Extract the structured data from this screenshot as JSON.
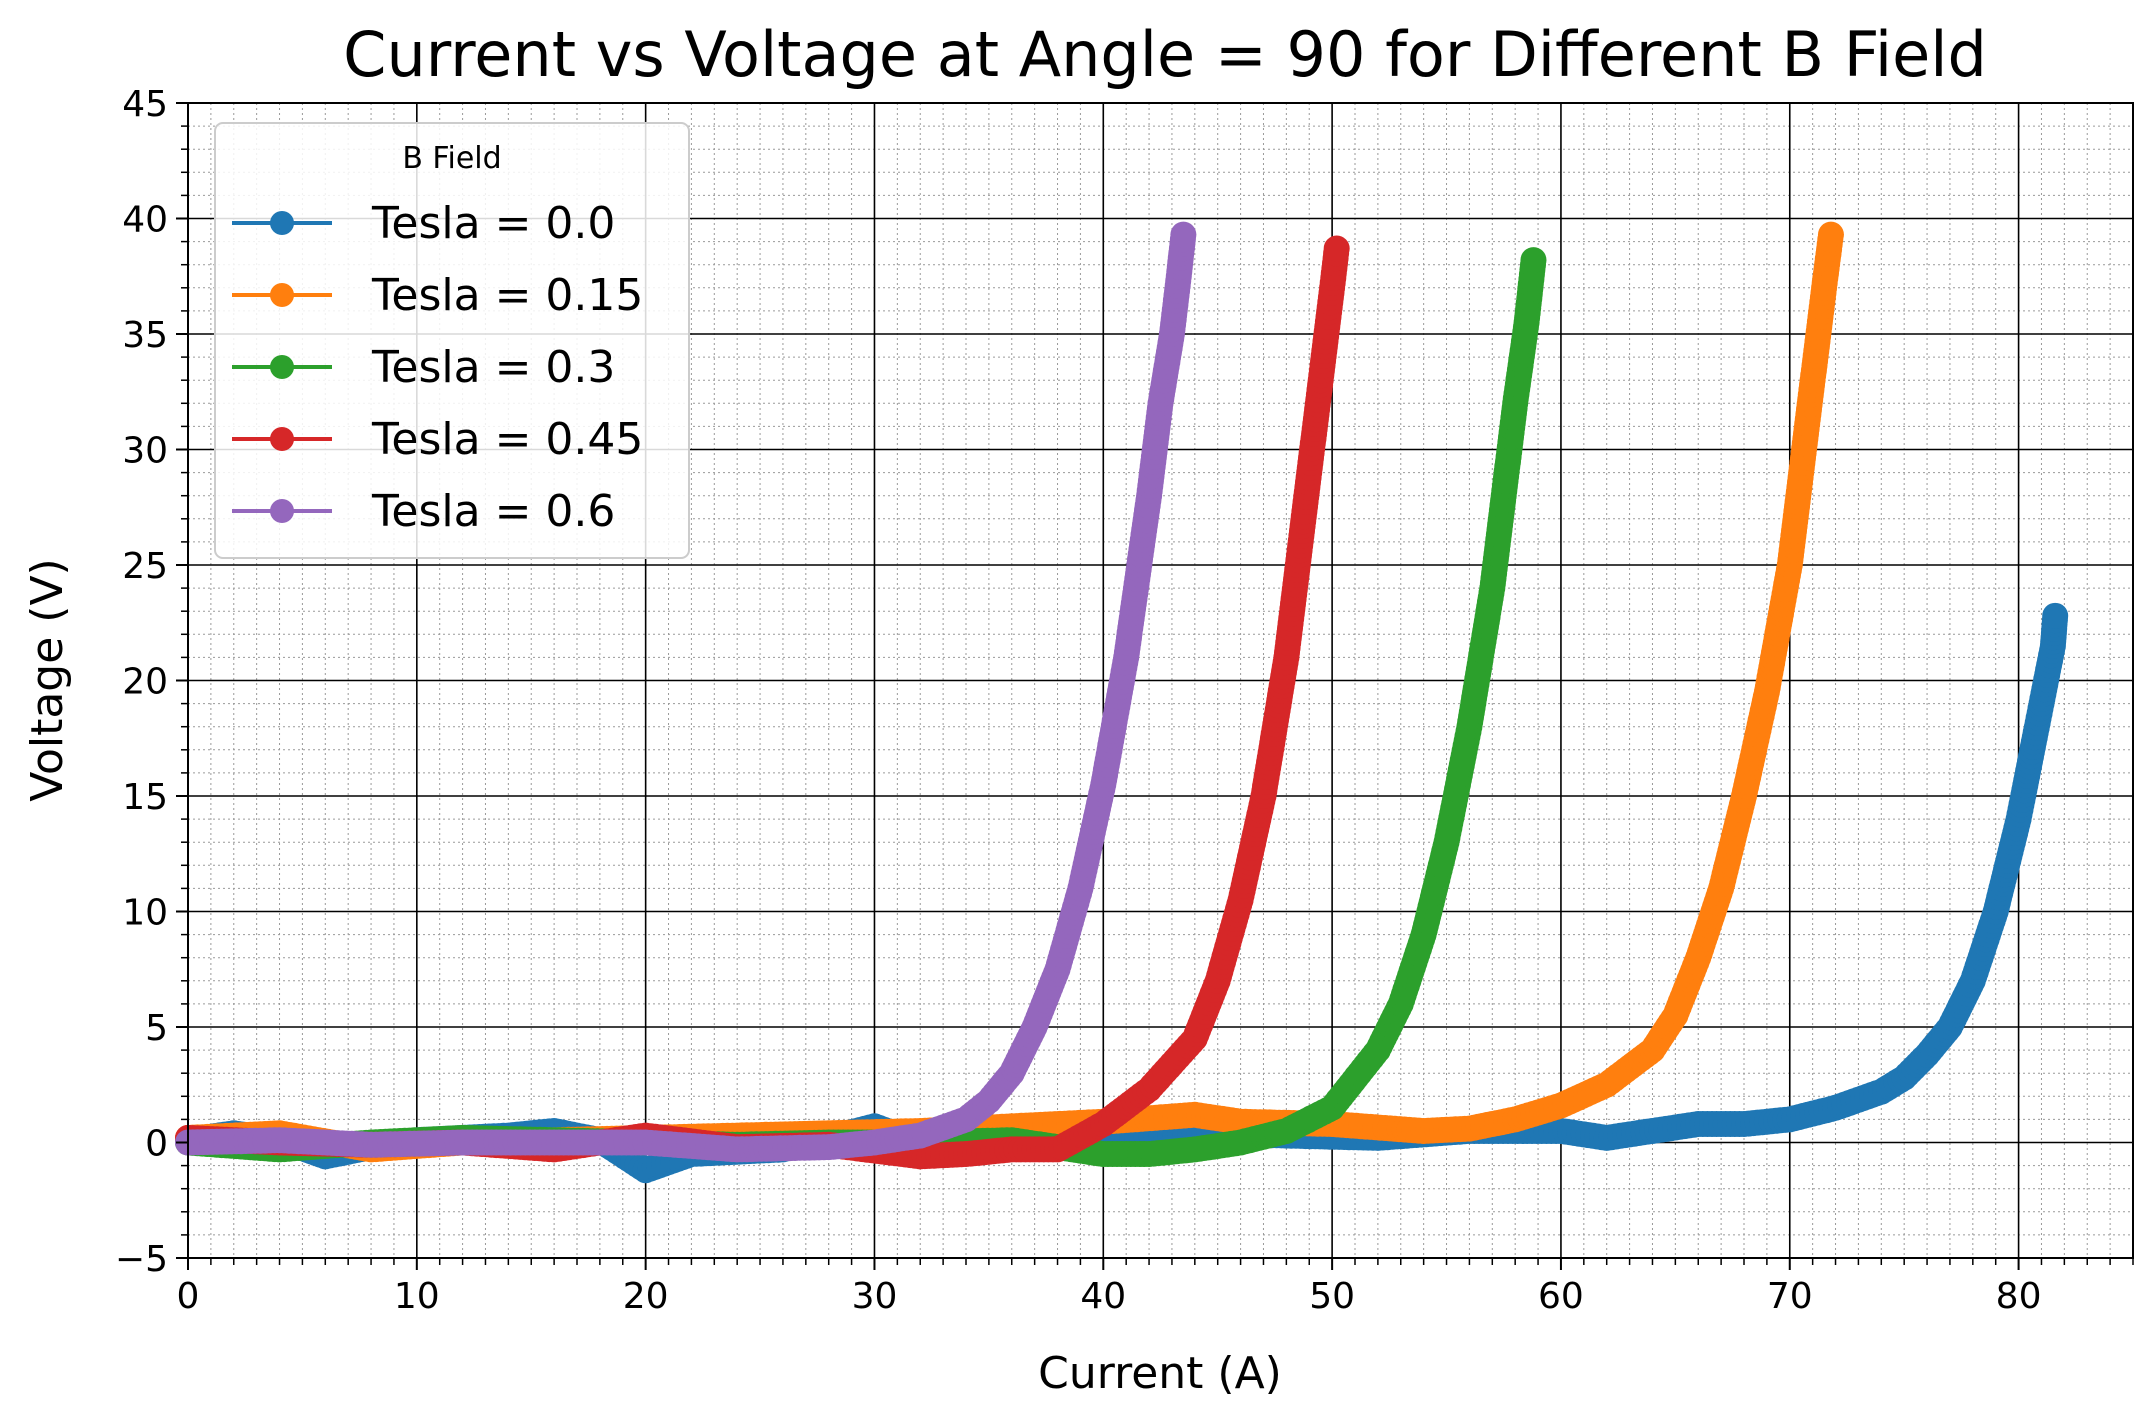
{
  "chart_data": {
    "type": "line",
    "title": "Current vs Voltage at Angle = 90 for Different B Field",
    "xlabel": "Current (A)",
    "ylabel": "Voltage (V)",
    "xlim": [
      0,
      85
    ],
    "ylim": [
      -5,
      45
    ],
    "x_ticks": [
      0,
      10,
      20,
      30,
      40,
      50,
      60,
      70,
      80
    ],
    "y_ticks": [
      -5,
      0,
      5,
      10,
      15,
      20,
      25,
      30,
      35,
      40,
      45
    ],
    "x_tick_labels": [
      "0",
      "10",
      "20",
      "30",
      "40",
      "50",
      "60",
      "70",
      "80"
    ],
    "y_tick_labels": [
      "−5",
      "0",
      "5",
      "10",
      "15",
      "20",
      "25",
      "30",
      "35",
      "40",
      "45"
    ],
    "grid": "major and minor",
    "legend": {
      "title": "B Field",
      "position": "top-left"
    },
    "series": [
      {
        "name": "Tesla = 0.0",
        "color": "#1f77b4",
        "x": [
          0,
          2,
          4,
          6,
          8,
          10,
          14,
          16,
          18,
          20,
          22,
          26,
          30,
          32,
          36,
          40,
          44,
          48,
          52,
          56,
          60,
          62,
          64,
          66,
          68,
          70,
          72,
          74,
          75,
          76,
          77,
          78,
          79,
          80,
          81,
          81.5,
          81.6
        ],
        "y": [
          0.1,
          0.4,
          0.1,
          -0.6,
          -0.2,
          0.1,
          0.3,
          0.5,
          0.1,
          -1.2,
          -0.5,
          -0.3,
          0.7,
          0.0,
          0.0,
          0.2,
          0.4,
          0.3,
          0.2,
          0.5,
          0.5,
          0.2,
          0.5,
          0.8,
          0.8,
          1.0,
          1.5,
          2.2,
          2.8,
          3.8,
          5.0,
          7.0,
          10.0,
          14.0,
          19.0,
          21.5,
          22.8
        ]
      },
      {
        "name": "Tesla = 0.15",
        "color": "#ff7f0e",
        "x": [
          0,
          4,
          8,
          12,
          16,
          20,
          24,
          28,
          32,
          36,
          40,
          44,
          46,
          50,
          54,
          56,
          58,
          60,
          62,
          64,
          65,
          66,
          67,
          68,
          69,
          70,
          70.5,
          71,
          71.5,
          71.8
        ],
        "y": [
          0.2,
          0.4,
          -0.3,
          0.0,
          0.1,
          0.2,
          0.3,
          0.4,
          0.5,
          0.7,
          0.9,
          1.2,
          0.9,
          0.8,
          0.5,
          0.6,
          1.0,
          1.6,
          2.5,
          4.0,
          5.5,
          8.0,
          11.0,
          15.0,
          19.5,
          25.0,
          29.0,
          33.0,
          37.0,
          39.3
        ]
      },
      {
        "name": "Tesla = 0.3",
        "color": "#2ca02c",
        "x": [
          0,
          4,
          8,
          12,
          16,
          20,
          24,
          28,
          32,
          36,
          38,
          40,
          42,
          44,
          46,
          48,
          50,
          52,
          53,
          54,
          55,
          56,
          57,
          57.5,
          58,
          58.5,
          58.8
        ],
        "y": [
          0.0,
          -0.3,
          0.0,
          0.2,
          0.1,
          0.0,
          -0.1,
          0.0,
          0.0,
          0.1,
          -0.2,
          -0.5,
          -0.5,
          -0.3,
          0.0,
          0.5,
          1.5,
          4.0,
          6.0,
          9.0,
          13.0,
          18.0,
          24.0,
          28.0,
          32.0,
          35.5,
          38.2
        ]
      },
      {
        "name": "Tesla = 0.45",
        "color": "#d62728",
        "x": [
          0,
          4,
          8,
          12,
          16,
          20,
          24,
          28,
          32,
          34,
          36,
          38,
          40,
          42,
          44,
          45,
          46,
          47,
          48,
          48.5,
          49,
          49.5,
          50,
          50.2
        ],
        "y": [
          0.2,
          0.0,
          -0.1,
          0.0,
          -0.3,
          0.3,
          -0.2,
          -0.1,
          -0.6,
          -0.5,
          -0.3,
          -0.3,
          0.8,
          2.3,
          4.5,
          7.0,
          10.5,
          15.0,
          21.0,
          25.0,
          29.0,
          33.0,
          37.0,
          38.7
        ]
      },
      {
        "name": "Tesla = 0.6",
        "color": "#9467bd",
        "x": [
          0,
          4,
          8,
          12,
          16,
          20,
          24,
          28,
          30,
          32,
          34,
          35,
          36,
          37,
          38,
          39,
          40,
          41,
          42,
          42.5,
          43,
          43.3,
          43.5
        ],
        "y": [
          0.0,
          0.1,
          -0.1,
          0.0,
          0.0,
          0.0,
          -0.3,
          -0.2,
          0.0,
          0.3,
          1.0,
          1.8,
          3.0,
          5.0,
          7.5,
          11.0,
          15.5,
          21.0,
          28.0,
          32.0,
          35.0,
          37.5,
          39.3
        ]
      }
    ]
  }
}
